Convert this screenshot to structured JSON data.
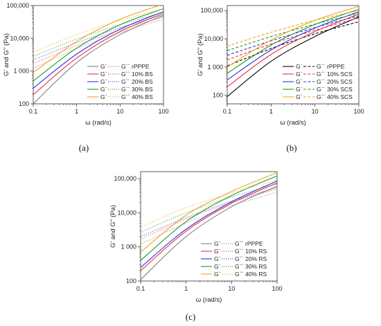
{
  "chart_data": [
    {
      "type": "line",
      "caption": "(a)",
      "xlabel": "ω (rad/s)",
      "ylabel": "G' and G'' (Pa)",
      "x_scale": "log",
      "y_scale": "log",
      "xlim": [
        0.1,
        100
      ],
      "ylim": [
        100,
        100000
      ],
      "x_ticks": [
        "0.1",
        "1",
        "10",
        "100"
      ],
      "y_ticks": [
        "100",
        "1 000",
        "10,000",
        "100,000"
      ],
      "legend_position": "bottom-right",
      "legend_headers": [
        "G`",
        "G``"
      ],
      "series": [
        {
          "name": "rPPPE",
          "color": "#808080",
          "x": [
            0.1,
            1,
            10,
            100
          ],
          "G_prime": [
            100,
            1800,
            13000,
            50000
          ],
          "G_double_prime": [
            1200,
            4800,
            15000,
            38000
          ]
        },
        {
          "name": "10% BS",
          "color": "#e8303a",
          "x": [
            0.1,
            1,
            10,
            100
          ],
          "G_prime": [
            190,
            2500,
            16000,
            58000
          ],
          "G_double_prime": [
            1700,
            6000,
            18000,
            45000
          ]
        },
        {
          "name": "20% BS",
          "color": "#2f2fe6",
          "x": [
            0.1,
            1,
            10,
            100
          ],
          "G_prime": [
            300,
            3300,
            19000,
            65000
          ],
          "G_double_prime": [
            2200,
            7300,
            21000,
            52000
          ]
        },
        {
          "name": "30% BS",
          "color": "#1a9a1a",
          "x": [
            0.1,
            1,
            10,
            100
          ],
          "G_prime": [
            500,
            5000,
            26000,
            80000
          ],
          "G_double_prime": [
            2800,
            9500,
            26000,
            62000
          ]
        },
        {
          "name": "40% BS",
          "color": "#f5a020",
          "x": [
            0.1,
            1,
            10,
            100
          ],
          "G_prime": [
            900,
            8000,
            38000,
            110000
          ],
          "G_double_prime": [
            3800,
            13000,
            35000,
            80000
          ]
        }
      ]
    },
    {
      "type": "line",
      "caption": "(b)",
      "xlabel": "ω (rad/s)",
      "ylabel": "G' and G\" (Pa)",
      "x_scale": "log",
      "y_scale": "log",
      "xlim": [
        0.1,
        100
      ],
      "ylim": [
        50,
        150000
      ],
      "x_ticks": [
        "0.1",
        "1",
        "10",
        "100"
      ],
      "y_ticks": [
        "100",
        "1 000",
        "10,000",
        "100,000"
      ],
      "legend_position": "bottom-right",
      "legend_headers": [
        "G`",
        "G``"
      ],
      "series": [
        {
          "name": "rPPPE",
          "color": "#000000",
          "x": [
            0.1,
            1,
            10,
            100
          ],
          "G_prime": [
            90,
            1600,
            12000,
            60000
          ],
          "G_double_prime": [
            1100,
            4500,
            15000,
            40000
          ]
        },
        {
          "name": "10% SCS",
          "color": "#e8303a",
          "x": [
            0.1,
            1,
            10,
            100
          ],
          "G_prime": [
            200,
            2800,
            18000,
            75000
          ],
          "G_double_prime": [
            1800,
            6500,
            20000,
            55000
          ]
        },
        {
          "name": "20% SCS",
          "color": "#2f2fe6",
          "x": [
            0.1,
            1,
            10,
            100
          ],
          "G_prime": [
            350,
            4000,
            24000,
            90000
          ],
          "G_double_prime": [
            2600,
            8500,
            25000,
            65000
          ]
        },
        {
          "name": "30% SCS",
          "color": "#1a9a1a",
          "x": [
            0.1,
            1,
            10,
            100
          ],
          "G_prime": [
            600,
            6000,
            32000,
            110000
          ],
          "G_double_prime": [
            3800,
            12000,
            33000,
            80000
          ]
        },
        {
          "name": "40% SCS",
          "color": "#f5a020",
          "x": [
            0.1,
            1,
            10,
            100
          ],
          "G_prime": [
            1000,
            9000,
            45000,
            140000
          ],
          "G_double_prime": [
            5500,
            17000,
            45000,
            100000
          ]
        }
      ]
    },
    {
      "type": "line",
      "caption": "(c)",
      "xlabel": "ω (rad/s)",
      "ylabel": "G' and G'' (Pa)",
      "x_scale": "log",
      "y_scale": "log",
      "xlim": [
        0.1,
        100
      ],
      "ylim": [
        100,
        160000
      ],
      "x_ticks": [
        "0.1",
        "1",
        "10",
        "100"
      ],
      "y_ticks": [
        "100",
        "1 000",
        "10,000",
        "100,000"
      ],
      "legend_position": "bottom-right",
      "legend_headers": [
        "G`",
        "G``"
      ],
      "series": [
        {
          "name": "rPPPE",
          "color": "#808080",
          "x": [
            0.1,
            1,
            10,
            100
          ],
          "G_prime": [
            110,
            2000,
            15000,
            60000
          ],
          "G_double_prime": [
            1200,
            5000,
            16000,
            40000
          ]
        },
        {
          "name": "10% RS",
          "color": "#e8303a",
          "x": [
            0.1,
            1,
            10,
            100
          ],
          "G_prime": [
            200,
            2900,
            19000,
            75000
          ],
          "G_double_prime": [
            1700,
            6500,
            20000,
            50000
          ]
        },
        {
          "name": "20% RS",
          "color": "#2f2fe6",
          "x": [
            0.1,
            1,
            10,
            100
          ],
          "G_prime": [
            250,
            3300,
            21000,
            85000
          ],
          "G_double_prime": [
            2000,
            7200,
            22000,
            55000
          ]
        },
        {
          "name": "30% RS",
          "color": "#1a9a1a",
          "x": [
            0.1,
            1,
            10,
            100
          ],
          "G_prime": [
            400,
            5500,
            32000,
            120000
          ],
          "G_double_prime": [
            2700,
            10000,
            29000,
            70000
          ]
        },
        {
          "name": "40% RS",
          "color": "#f5a020",
          "x": [
            0.1,
            1,
            10,
            100
          ],
          "G_prime": [
            700,
            8500,
            42000,
            150000
          ],
          "G_double_prime": [
            3800,
            14000,
            38000,
            90000
          ]
        }
      ]
    }
  ]
}
